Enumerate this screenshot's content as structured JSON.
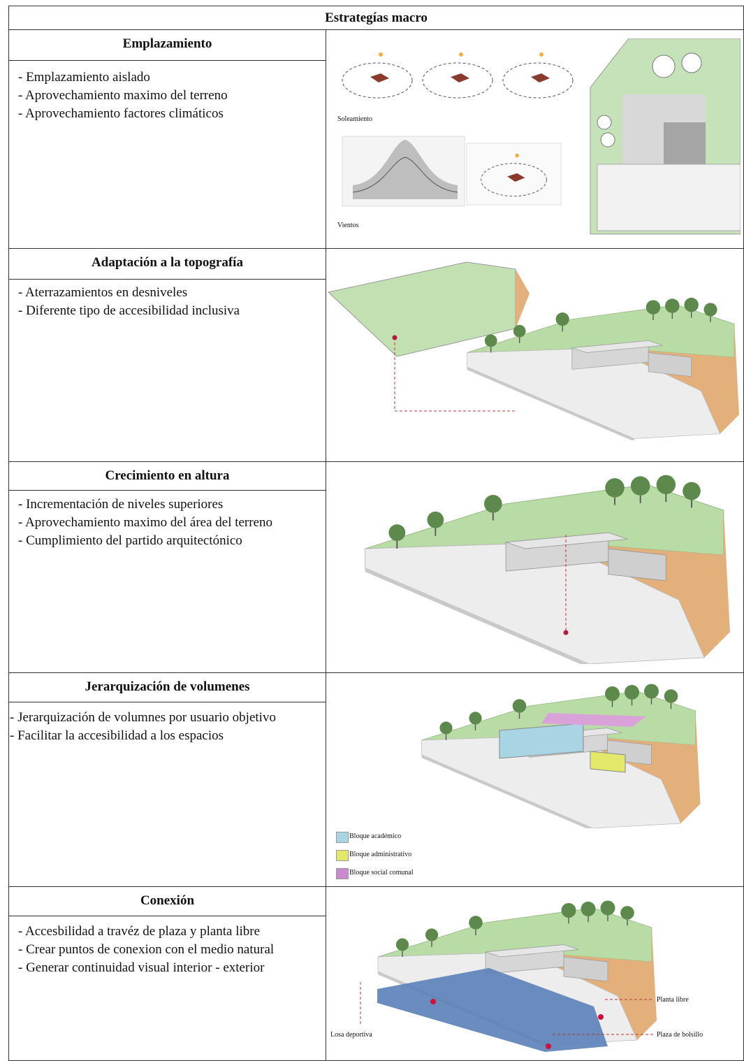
{
  "table": {
    "title": "Estrategías macro",
    "rows": [
      {
        "heading": "Emplazamiento",
        "items": [
          "Emplazamiento aislado",
          "Aprovechamiento maximo del terreno",
          "Aprovechamiento factores climáticos"
        ],
        "figure_labels": [
          "Soleamiento",
          "Vientos"
        ]
      },
      {
        "heading": "Adaptación a la topografía",
        "items": [
          "Aterrazamientos en desniveles",
          "Diferente tipo de accesibilidad inclusiva"
        ]
      },
      {
        "heading": "Crecimiento en altura",
        "items": [
          "Incrementación de niveles superiores",
          "Aprovechamiento maximo del área del terreno",
          "Cumplimiento del partido arquitectónico"
        ]
      },
      {
        "heading": "Jerarquización de volumenes",
        "items": [
          "Jerarquización de volumnes por usuario objetivo",
          "Facilitar la accesibilidad a los espacios"
        ],
        "figure_labels": [
          "Bloque académico",
          "Bloque administrativo",
          "Bloque social comunal"
        ]
      },
      {
        "heading": "Conexión",
        "items": [
          "Accesbilidad a travéz de plaza y planta libre",
          "Crear puntos de conexion con el medio natural",
          "Generar continuidad visual interior - exterior"
        ],
        "figure_labels": [
          "Planta libre",
          "Losa deportiva",
          "Plaza de bolsillo"
        ]
      }
    ]
  }
}
